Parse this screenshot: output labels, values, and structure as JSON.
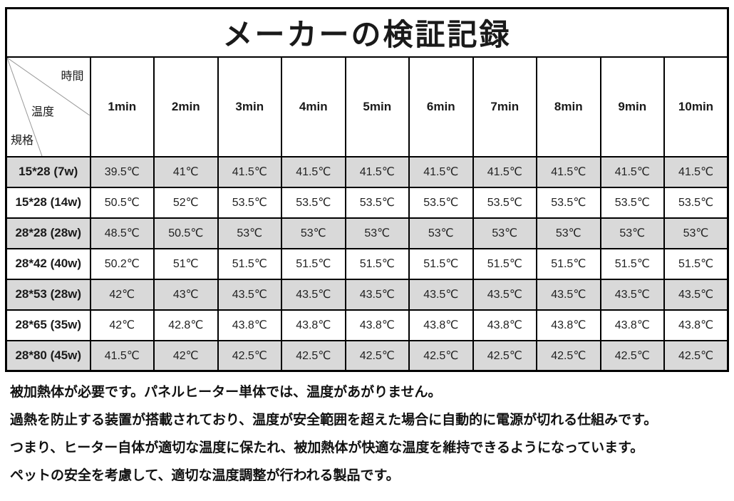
{
  "title": "メーカーの検証記録",
  "table": {
    "corner": {
      "time": "時間",
      "temperature": "温度",
      "spec": "規格"
    },
    "time_headers": [
      "1min",
      "2min",
      "3min",
      "4min",
      "5min",
      "6min",
      "7min",
      "8min",
      "9min",
      "10min"
    ],
    "rows": [
      {
        "spec": "15*28 (7w)",
        "values": [
          "39.5℃",
          "41℃",
          "41.5℃",
          "41.5℃",
          "41.5℃",
          "41.5℃",
          "41.5℃",
          "41.5℃",
          "41.5℃",
          "41.5℃"
        ]
      },
      {
        "spec": "15*28 (14w)",
        "values": [
          "50.5℃",
          "52℃",
          "53.5℃",
          "53.5℃",
          "53.5℃",
          "53.5℃",
          "53.5℃",
          "53.5℃",
          "53.5℃",
          "53.5℃"
        ]
      },
      {
        "spec": "28*28 (28w)",
        "values": [
          "48.5℃",
          "50.5℃",
          "53℃",
          "53℃",
          "53℃",
          "53℃",
          "53℃",
          "53℃",
          "53℃",
          "53℃"
        ]
      },
      {
        "spec": "28*42 (40w)",
        "values": [
          "50.2℃",
          "51℃",
          "51.5℃",
          "51.5℃",
          "51.5℃",
          "51.5℃",
          "51.5℃",
          "51.5℃",
          "51.5℃",
          "51.5℃"
        ]
      },
      {
        "spec": "28*53 (28w)",
        "values": [
          "42℃",
          "43℃",
          "43.5℃",
          "43.5℃",
          "43.5℃",
          "43.5℃",
          "43.5℃",
          "43.5℃",
          "43.5℃",
          "43.5℃"
        ]
      },
      {
        "spec": "28*65 (35w)",
        "values": [
          "42℃",
          "42.8℃",
          "43.8℃",
          "43.8℃",
          "43.8℃",
          "43.8℃",
          "43.8℃",
          "43.8℃",
          "43.8℃",
          "43.8℃"
        ]
      },
      {
        "spec": "28*80 (45w)",
        "values": [
          "41.5℃",
          "42℃",
          "42.5℃",
          "42.5℃",
          "42.5℃",
          "42.5℃",
          "42.5℃",
          "42.5℃",
          "42.5℃",
          "42.5℃"
        ]
      }
    ]
  },
  "notes": [
    "被加熱体が必要です。パネルヒーター単体では、温度があがりません。",
    "過熱を防止する装置が搭載されており、温度が安全範囲を超えた場合に自動的に電源が切れる仕組みです。",
    "つまり、ヒーター自体が適切な温度に保たれ、被加熱体が快適な温度を維持できるようになっています。",
    "ペットの安全を考慮して、適切な温度調整が行われる製品です。"
  ],
  "colors": {
    "stripe_row": "#d9d9d9",
    "border": "#000000",
    "diagonal_line": "#999999",
    "background": "#ffffff"
  }
}
